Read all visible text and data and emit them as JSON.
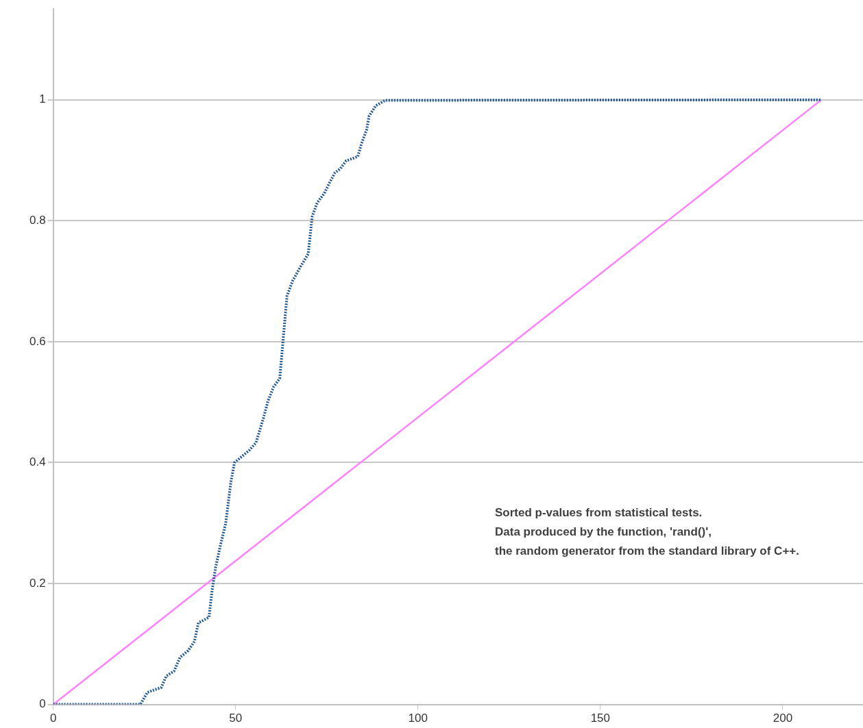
{
  "chart_data": {
    "type": "line",
    "x": [
      0,
      23.9,
      25.8,
      29.6,
      31,
      33.1,
      34.8,
      37,
      38.7,
      39.8,
      42.7,
      43.5,
      44.5,
      45.8,
      47.3,
      48.7,
      49.7,
      53.7,
      55.6,
      57.6,
      58.9,
      60.4,
      62.1,
      63.1,
      64.1,
      65.6,
      67.6,
      69.9,
      71,
      72.4,
      74.3,
      75.6,
      77.2,
      78.7,
      80.3,
      83.5,
      84.5,
      85.9,
      86.6,
      88.4,
      91,
      210.6
    ],
    "series": [
      {
        "color": "#1f5591",
        "line_style": "dotted",
        "values": [
          0,
          0,
          0.02,
          0.028,
          0.047,
          0.055,
          0.078,
          0.089,
          0.104,
          0.135,
          0.144,
          0.186,
          0.226,
          0.262,
          0.3,
          0.368,
          0.4,
          0.42,
          0.433,
          0.473,
          0.502,
          0.525,
          0.539,
          0.608,
          0.676,
          0.7,
          0.722,
          0.745,
          0.807,
          0.83,
          0.845,
          0.861,
          0.879,
          0.886,
          0.899,
          0.906,
          0.927,
          0.95,
          0.973,
          0.99,
          0.999,
          1
        ]
      },
      {
        "color": "#ff80ff",
        "line_style": "solid",
        "x": [
          0,
          210.6
        ],
        "values": [
          0,
          1
        ]
      }
    ],
    "xlim": [
      0,
      222
    ],
    "xticks": [
      0,
      50,
      100,
      150,
      200
    ],
    "ylim": [
      0,
      1.15
    ],
    "yticks": [
      0,
      0.2,
      0.4,
      0.6,
      0.8,
      1
    ],
    "grid": "y",
    "legend": false,
    "marker": "none",
    "annotations": [
      "Sorted p-values from statistical tests.",
      "Data produced by the function, 'rand()',",
      "the random generator from the standard library of C++."
    ]
  }
}
